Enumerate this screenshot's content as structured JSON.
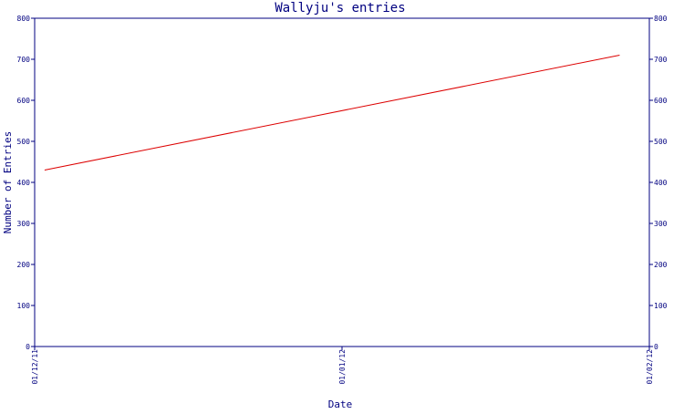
{
  "chart_data": {
    "type": "line",
    "title": "Wallyju's entries",
    "xlabel": "Date",
    "ylabel": "Number of Entries",
    "ylim": [
      0,
      800
    ],
    "yticks": [
      0,
      100,
      200,
      300,
      400,
      500,
      600,
      700,
      800
    ],
    "x_range": [
      "2011-12-01",
      "2012-02-01"
    ],
    "x_tick_labels": [
      {
        "date": "2011-12-01",
        "label": "01/12/11"
      },
      {
        "date": "2012-01-01",
        "label": "01/01/12"
      },
      {
        "date": "2012-02-01",
        "label": "01/02/12"
      }
    ],
    "series": [
      {
        "color": "#dd0000",
        "points": [
          {
            "x": "2011-12-02",
            "y": 430
          },
          {
            "x": "2012-01-29",
            "y": 710
          }
        ]
      }
    ],
    "grid": false,
    "colors": {
      "axis": "#000080",
      "line": "#dd0000"
    }
  }
}
